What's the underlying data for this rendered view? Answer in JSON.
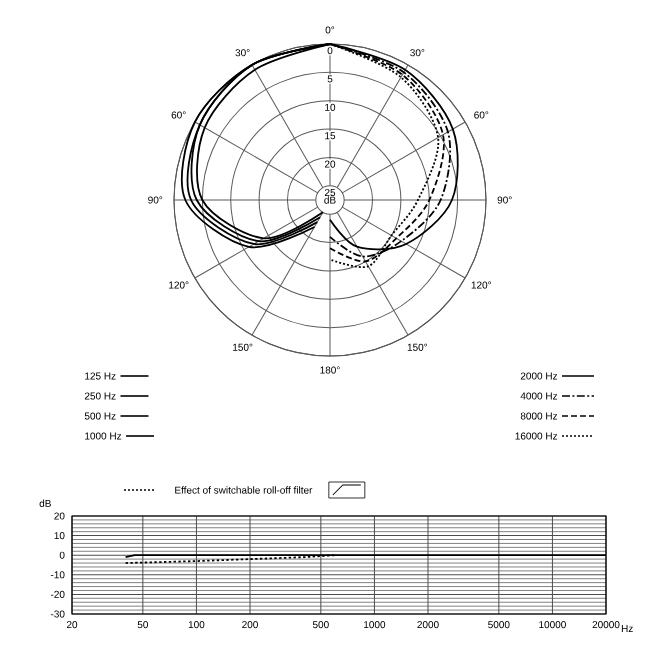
{
  "chart_data": [
    {
      "type": "radar",
      "categories": [
        "0°",
        "30°",
        "60°",
        "90°",
        "120°",
        "150°",
        "180°",
        "150°",
        "120°",
        "90°",
        "60°",
        "30°"
      ],
      "ylim": [
        27.5,
        0
      ],
      "yticks": [
        0,
        5,
        10,
        15,
        20,
        25
      ],
      "ylabel": "dB",
      "grid": true,
      "legend": "bottom",
      "series": [
        {
          "name": "125 Hz",
          "color": "#000000",
          "line_style": "solid",
          "values": [
            0,
            null,
            null,
            null,
            null,
            null,
            null,
            25,
            14,
            5,
            2,
            1
          ]
        },
        {
          "name": "250 Hz",
          "color": "#000000",
          "line_style": "solid",
          "values": [
            0,
            null,
            null,
            null,
            null,
            null,
            null,
            24,
            13,
            4,
            1,
            0
          ]
        },
        {
          "name": "500 Hz",
          "color": "#000000",
          "line_style": "solid",
          "values": [
            0,
            null,
            null,
            null,
            null,
            null,
            null,
            23,
            12,
            3,
            1,
            0
          ]
        },
        {
          "name": "1000 Hz",
          "color": "#000000",
          "line_style": "solid",
          "values": [
            0,
            null,
            null,
            null,
            null,
            null,
            null,
            22,
            11,
            2,
            0,
            0
          ]
        },
        {
          "name": "2000 Hz",
          "color": "#000000",
          "line_style": "solid",
          "values": [
            0,
            1,
            2.5,
            6,
            12,
            18,
            24,
            null,
            null,
            null,
            null,
            null
          ]
        },
        {
          "name": "4000 Hz",
          "color": "#000000",
          "line_style": "dashdot",
          "values": [
            0,
            1.5,
            3.5,
            8,
            13,
            16,
            21,
            null,
            null,
            null,
            null,
            null
          ]
        },
        {
          "name": "8000 Hz",
          "color": "#000000",
          "line_style": "dashed",
          "values": [
            0,
            2,
            4.5,
            10,
            14,
            15,
            19,
            null,
            null,
            null,
            null,
            null
          ]
        },
        {
          "name": "16000 Hz",
          "color": "#000000",
          "line_style": "dotted",
          "values": [
            0,
            2.5,
            5.5,
            12,
            15,
            14,
            17,
            null,
            null,
            null,
            null,
            null
          ]
        }
      ]
    },
    {
      "type": "line",
      "xlabel": "Hz",
      "ylabel": "dB",
      "log": "x",
      "grid": true,
      "legend": "top",
      "xlim": [
        20,
        20000
      ],
      "ylim": [
        -30,
        20
      ],
      "xticks": [
        20,
        50,
        100,
        200,
        500,
        1000,
        2000,
        5000,
        10000,
        20000
      ],
      "yticks": [
        -30,
        -20,
        -10,
        0,
        10,
        20
      ],
      "series": [
        {
          "name": "Effect of switchable roll-off filter",
          "color": "#000000",
          "line_style": "dotted",
          "x": [
            40,
            100,
            200,
            400,
            600
          ],
          "values": [
            -4,
            -3,
            -2,
            -1,
            0
          ]
        },
        {
          "color": "#000000",
          "line_style": "solid",
          "x": [
            40,
            45,
            100,
            1000,
            10000,
            20000
          ],
          "values": [
            -1,
            0,
            0,
            0,
            0,
            0
          ]
        }
      ]
    }
  ]
}
